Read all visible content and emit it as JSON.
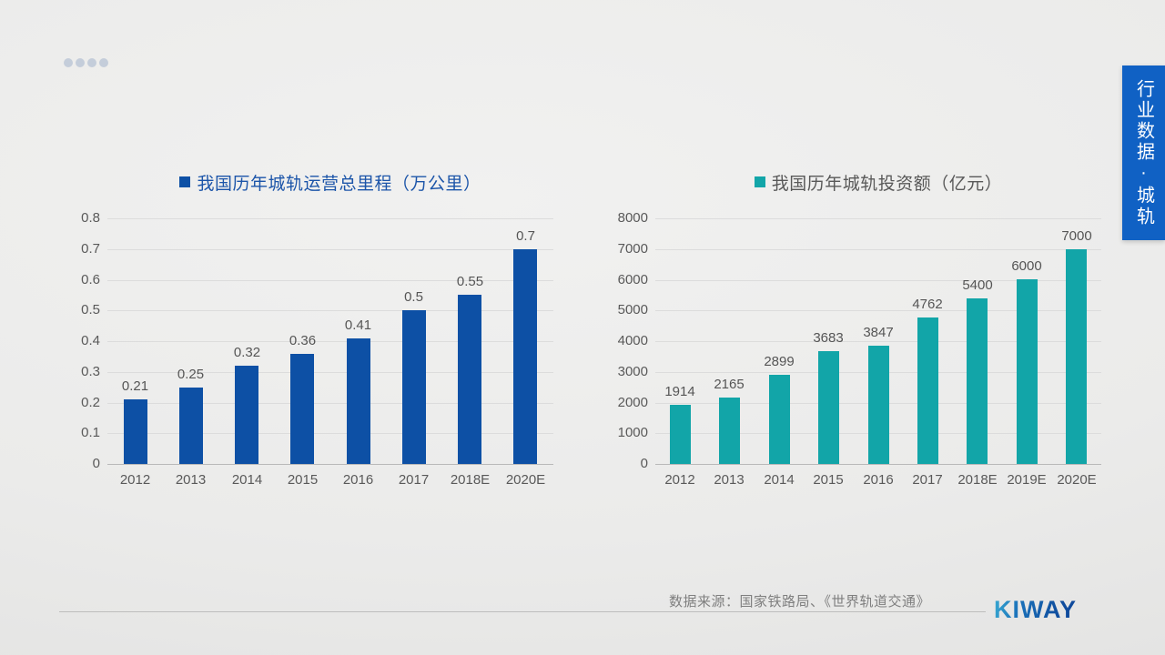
{
  "decor": {
    "dot_color": "#c4cdda",
    "dots_count": 4
  },
  "side_banner": {
    "text": "行业数据·城轨",
    "bg_color": "#1061c4",
    "text_color": "#ffffff"
  },
  "chart_data": [
    {
      "type": "bar",
      "title": "我国历年城轨运营总里程（万公里）",
      "title_color": "#1c55a9",
      "bar_color": "#0d50a5",
      "categories": [
        "2012",
        "2013",
        "2014",
        "2015",
        "2016",
        "2017",
        "2018E",
        "2020E"
      ],
      "values": [
        0.21,
        0.25,
        0.32,
        0.36,
        0.41,
        0.5,
        0.55,
        0.7
      ],
      "value_labels": [
        "0.21",
        "0.25",
        "0.32",
        "0.36",
        "0.41",
        "0.5",
        "0.55",
        "0.7"
      ],
      "yticks": [
        "0.8",
        "0.7",
        "0.6",
        "0.5",
        "0.4",
        "0.3",
        "0.2",
        "0.1",
        "0"
      ],
      "ylim": [
        0,
        0.8
      ],
      "grid": true,
      "legend_position": "top",
      "xlabel": "",
      "ylabel": ""
    },
    {
      "type": "bar",
      "title": "我国历年城轨投资额（亿元）",
      "title_color": "#595959",
      "bar_color": "#12a5a8",
      "categories": [
        "2012",
        "2013",
        "2014",
        "2015",
        "2016",
        "2017",
        "2018E",
        "2019E",
        "2020E"
      ],
      "values": [
        1914,
        2165,
        2899,
        3683,
        3847,
        4762,
        5400,
        6000,
        7000
      ],
      "value_labels": [
        "1914",
        "2165",
        "2899",
        "3683",
        "3847",
        "4762",
        "5400",
        "6000",
        "7000"
      ],
      "yticks": [
        "8000",
        "7000",
        "6000",
        "5000",
        "4000",
        "3000",
        "2000",
        "1000",
        "0"
      ],
      "ylim": [
        0,
        8000
      ],
      "grid": true,
      "legend_position": "top",
      "xlabel": "",
      "ylabel": ""
    }
  ],
  "footer": {
    "source": "数据来源：国家铁路局、《世界轨道交通》",
    "logo_text": "KIWAY"
  }
}
